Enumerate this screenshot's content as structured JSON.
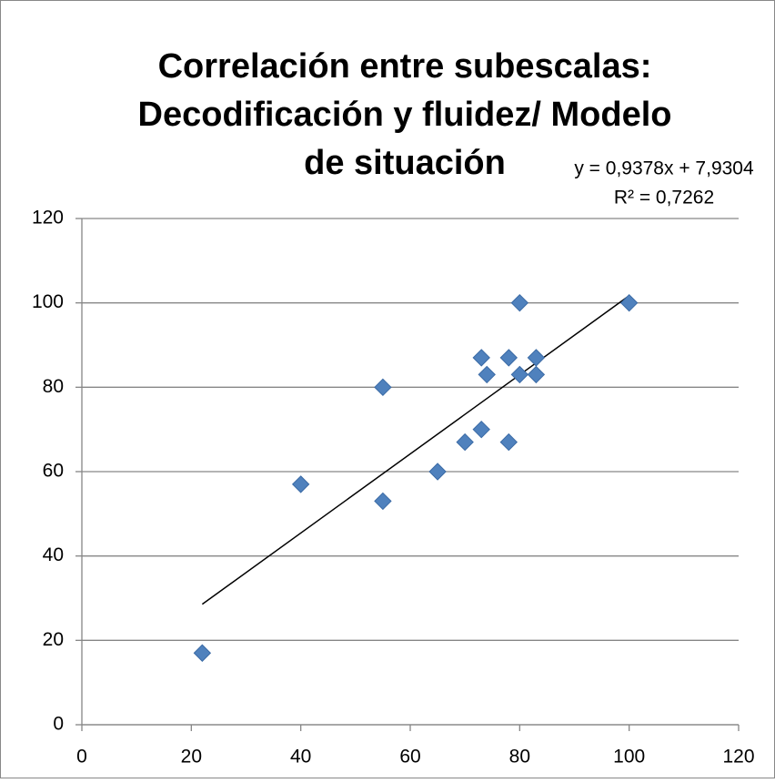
{
  "chart_data": {
    "type": "scatter",
    "title": [
      "Correlación entre subescalas:",
      "Decodificación y fluidez/ Modelo",
      "de situación"
    ],
    "x": [
      22,
      40,
      55,
      55,
      65,
      70,
      73,
      73,
      74,
      78,
      78,
      80,
      80,
      83,
      83,
      100
    ],
    "values": [
      17,
      57,
      80,
      53,
      60,
      67,
      70,
      87,
      83,
      87,
      67,
      100,
      83,
      87,
      83,
      100
    ],
    "color": "#4f81bd",
    "xlim": [
      0,
      120
    ],
    "xticks": [
      0,
      20,
      40,
      60,
      80,
      100,
      120
    ],
    "ylim": [
      0,
      120
    ],
    "yticks": [
      0,
      20,
      40,
      60,
      80,
      100,
      120
    ],
    "grid": true,
    "trendline": {
      "slope": 0.9378,
      "intercept": 7.9304,
      "label": "y = 0,9378x + 7,9304",
      "r2_label": "R² = 0,7262"
    }
  }
}
